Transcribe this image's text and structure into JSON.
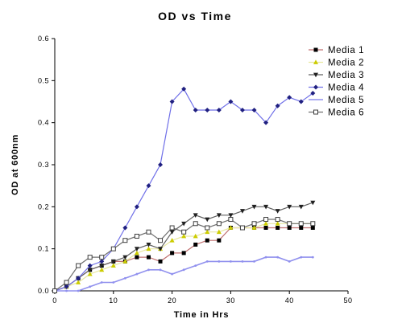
{
  "chart_data": {
    "type": "line",
    "title": "OD vs Time",
    "xlabel": "Time in Hrs",
    "ylabel": "OD at 600nm",
    "xlim": [
      0,
      50
    ],
    "ylim": [
      0,
      0.6
    ],
    "xticks": [
      0,
      10,
      20,
      30,
      40,
      50
    ],
    "yticks": [
      0.0,
      0.1,
      0.2,
      0.3,
      0.4,
      0.5,
      0.6
    ],
    "ytick_labels": [
      "0.0",
      "0.1",
      "0.2",
      "0.3",
      "0.4",
      "0.5",
      "0.6"
    ],
    "grid": false,
    "legend_position": "top-right",
    "x": [
      0,
      2,
      4,
      6,
      8,
      10,
      12,
      14,
      16,
      18,
      20,
      22,
      24,
      26,
      28,
      30,
      32,
      34,
      36,
      38,
      40,
      42,
      44
    ],
    "series": [
      {
        "name": "Media 1",
        "color": "#c07070",
        "marker": "square-filled",
        "marker_color": "#000000",
        "values": [
          0,
          0.01,
          0.03,
          0.05,
          0.06,
          0.07,
          0.07,
          0.08,
          0.08,
          0.07,
          0.09,
          0.09,
          0.11,
          0.12,
          0.12,
          0.15,
          0.15,
          0.15,
          0.15,
          0.15,
          0.15,
          0.15,
          0.15
        ]
      },
      {
        "name": "Media 2",
        "color": "#e8e8a0",
        "marker": "triangle-up",
        "marker_color": "#cccc00",
        "values": [
          0,
          0.01,
          0.02,
          0.04,
          0.05,
          0.06,
          0.07,
          0.09,
          0.1,
          0.1,
          0.12,
          0.13,
          0.13,
          0.14,
          0.14,
          0.15,
          0.15,
          0.15,
          0.16,
          0.16,
          0.16,
          0.16,
          0.16
        ]
      },
      {
        "name": "Media 3",
        "color": "#606060",
        "marker": "triangle-down",
        "marker_color": "#202020",
        "values": [
          0,
          0.01,
          0.03,
          0.05,
          0.06,
          0.07,
          0.08,
          0.1,
          0.11,
          0.1,
          0.14,
          0.16,
          0.18,
          0.17,
          0.18,
          0.18,
          0.19,
          0.2,
          0.2,
          0.19,
          0.2,
          0.2,
          0.21
        ]
      },
      {
        "name": "Media 4",
        "color": "#7070e8",
        "marker": "diamond",
        "marker_color": "#202080",
        "values": [
          0,
          0.01,
          0.03,
          0.06,
          0.07,
          0.1,
          0.15,
          0.2,
          0.25,
          0.3,
          0.45,
          0.48,
          0.43,
          0.43,
          0.43,
          0.45,
          0.43,
          0.43,
          0.4,
          0.44,
          0.46,
          0.45,
          0.47
        ]
      },
      {
        "name": "Media 5",
        "color": "#9090ee",
        "marker": "none",
        "marker_color": "#9090ee",
        "values": [
          0,
          0,
          0,
          0.01,
          0.02,
          0.02,
          0.03,
          0.04,
          0.05,
          0.05,
          0.04,
          0.05,
          0.06,
          0.07,
          0.07,
          0.07,
          0.07,
          0.07,
          0.08,
          0.08,
          0.07,
          0.08,
          0.08
        ]
      },
      {
        "name": "Media 6",
        "color": "#707070",
        "marker": "square-open",
        "marker_color": "#404040",
        "values": [
          0,
          0.02,
          0.06,
          0.08,
          0.08,
          0.1,
          0.12,
          0.13,
          0.14,
          0.12,
          0.15,
          0.14,
          0.16,
          0.15,
          0.16,
          0.17,
          0.15,
          0.16,
          0.17,
          0.17,
          0.16,
          0.16,
          0.16
        ]
      }
    ]
  }
}
